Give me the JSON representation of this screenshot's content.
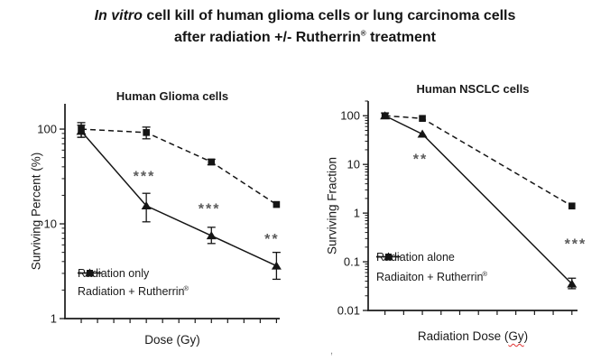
{
  "title": {
    "italic_lead": "In vitro",
    "line1_rest": " cell kill of human glioma cells or lung carcinoma cells",
    "line2_pre": "after radiation +/- Rutherrin",
    "registered_symbol": "®",
    "line2_post": " treatment"
  },
  "page": {
    "stray_mark": ","
  },
  "colors": {
    "series": "#151515",
    "axis": "#1a1a1a",
    "annotation": "#5a5a5a",
    "squiggle": "#e03131",
    "background": "#ffffff"
  },
  "chart_data": [
    {
      "type": "line",
      "title": "Human Glioma cells",
      "xlabel": "Dose (Gy)",
      "ylabel": "Surviving Percent (%)",
      "yscale": "log",
      "ylim": [
        1,
        185
      ],
      "xlim": [
        -0.25,
        3.05
      ],
      "yticks": [
        100,
        10,
        1
      ],
      "xticks": {
        "start": 0,
        "step": 0.25,
        "count": 13,
        "labels": "none (unlabeled tick marks)"
      },
      "grid": false,
      "legend_position": "lower-left-inside",
      "series": [
        {
          "name": "Radiation only",
          "marker": "square",
          "line_style": "dashed",
          "x": [
            0,
            1,
            2,
            3
          ],
          "values": [
            100,
            92,
            45,
            16
          ],
          "yerr_low": [
            82,
            79,
            42,
            null
          ],
          "yerr_high": [
            117,
            105,
            48,
            null
          ]
        },
        {
          "name": "Radiation + Rutherrin",
          "name_sup": "®",
          "marker": "triangle",
          "line_style": "solid",
          "x": [
            0,
            1,
            2,
            3
          ],
          "values": [
            95,
            15.5,
            7.5,
            3.6
          ],
          "yerr_low": [
            82,
            10.5,
            6.2,
            2.6
          ],
          "yerr_high": [
            110,
            21,
            9.2,
            5.0
          ]
        }
      ],
      "annotations": [
        {
          "text": "***",
          "x": 0.97,
          "y": 33
        },
        {
          "text": "***",
          "x": 1.97,
          "y": 15
        },
        {
          "text": "**",
          "x": 2.93,
          "y": 7.2
        }
      ]
    },
    {
      "type": "line",
      "title": "Human NSCLC cells",
      "xlabel": "Radiation Dose (Gy)",
      "xlabel_parts": {
        "pre": "Radiation Dose (",
        "wavy": "Gy",
        "post": ")"
      },
      "ylabel": "Surviving Fraction",
      "yscale": "log",
      "ylim": [
        0.01,
        200
      ],
      "xlim": [
        -0.9,
        10.3
      ],
      "yticks": [
        100,
        10,
        1,
        0.1,
        0.01
      ],
      "xticks": {
        "start": 0,
        "step": 1,
        "count": 11,
        "labels": "none (unlabeled tick marks)"
      },
      "grid": false,
      "legend_position": "lower-left-inside",
      "series": [
        {
          "name": "Radiation alone",
          "marker": "square",
          "line_style": "dashed",
          "x": [
            0,
            2,
            10
          ],
          "values": [
            100,
            88,
            1.4
          ],
          "yerr_low": [
            88,
            null,
            null
          ],
          "yerr_high": [
            114,
            null,
            null
          ]
        },
        {
          "name": "Radiaiton + Rutherrin",
          "name_sup": "®",
          "marker": "triangle",
          "line_style": "solid",
          "x": [
            0,
            2,
            10
          ],
          "values": [
            100,
            42,
            0.035
          ],
          "yerr_low": [
            null,
            null,
            0.028
          ],
          "yerr_high": [
            null,
            null,
            0.046
          ]
        }
      ],
      "annotations": [
        {
          "text": "**",
          "x": 1.9,
          "y": 14
        },
        {
          "text": "***",
          "x": 10.2,
          "y": 0.25
        }
      ]
    }
  ]
}
